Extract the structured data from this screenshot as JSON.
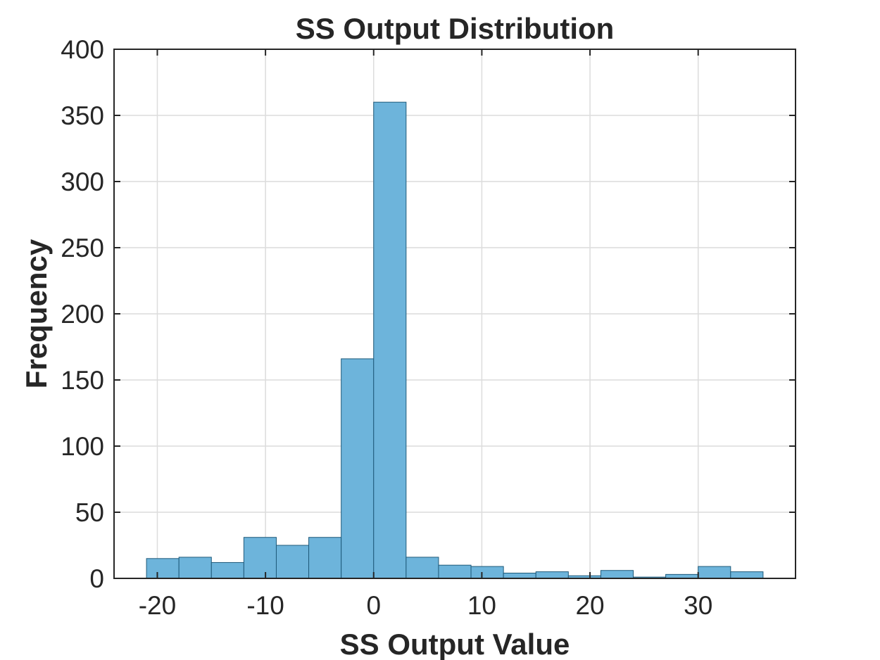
{
  "chart_data": {
    "type": "bar",
    "title": "SS Output Distribution",
    "xlabel": "SS Output Value",
    "ylabel": "Frequency",
    "xlim": [
      -24,
      39
    ],
    "ylim": [
      0,
      400
    ],
    "xticks": [
      -20,
      -10,
      0,
      10,
      20,
      30
    ],
    "yticks": [
      0,
      50,
      100,
      150,
      200,
      250,
      300,
      350,
      400
    ],
    "grid": true,
    "bin_edges": [
      -21,
      -18,
      -15,
      -12,
      -9,
      -6,
      -3,
      0,
      3,
      6,
      9,
      12,
      15,
      18,
      21,
      24,
      27,
      30,
      33,
      36
    ],
    "values": [
      15,
      16,
      12,
      31,
      25,
      31,
      166,
      360,
      16,
      10,
      9,
      4,
      5,
      2,
      6,
      1,
      3,
      9,
      5
    ],
    "bar_color": "#6db4db",
    "bar_edge_color": "#1f5a7a"
  }
}
